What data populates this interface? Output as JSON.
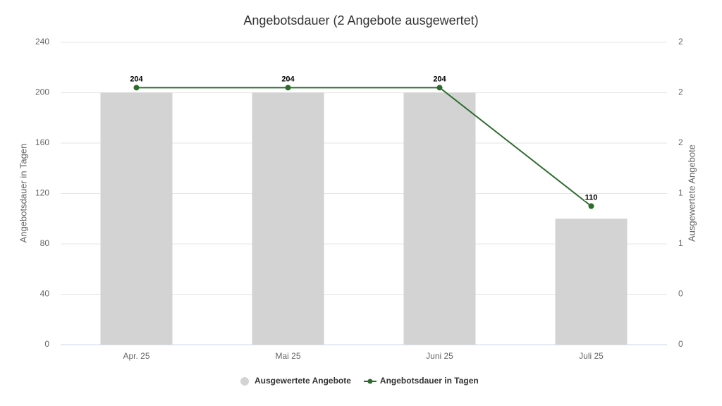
{
  "chart_data": {
    "type": "combo",
    "title": "Angebotsdauer (2 Angebote ausgewertet)",
    "y_label": "Angebotsdauer in Tagen",
    "y2_label": "Ausgewertete Angebote",
    "categories": [
      "Apr. 25",
      "Mai 25",
      "Juni 25",
      "Juli 25"
    ],
    "series": [
      {
        "name": "Ausgewertete Angebote",
        "type": "bar",
        "color": "#d3d3d3",
        "axis": "y2",
        "values": [
          2,
          2,
          2,
          1
        ]
      },
      {
        "name": "Angebotsdauer in Tagen",
        "type": "line",
        "color": "#2e6b2e",
        "values": [
          204,
          204,
          204,
          110
        ]
      }
    ],
    "ylim": [
      0,
      240
    ],
    "yticks": [
      0,
      40,
      80,
      120,
      160,
      200,
      240
    ],
    "y2lim": [
      0,
      2.4
    ],
    "y2ticks": [
      0,
      {
        "value": 0.4,
        "label": "0"
      },
      {
        "value": 0.8,
        "label": "1"
      },
      {
        "value": 1.2,
        "label": "1"
      },
      {
        "value": 1.6,
        "label": "2"
      },
      2,
      {
        "value": 2.4,
        "label": "2"
      }
    ],
    "grid": true,
    "legend": "bottom"
  }
}
